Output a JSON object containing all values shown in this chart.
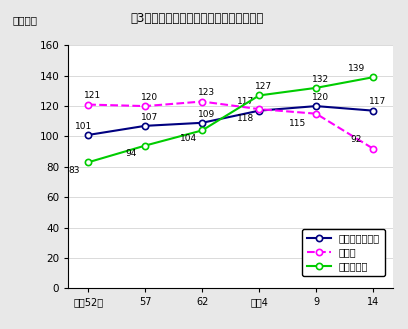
{
  "title": "嘶3　主な産業別有業者数の推移（香川）",
  "ylabel": "（千人）",
  "x_labels": [
    "昭和52年",
    "57",
    "62",
    "平成4",
    "9",
    "14"
  ],
  "x_positions": [
    0,
    1,
    2,
    3,
    4,
    5
  ],
  "series": [
    {
      "name": "卖小売業飲食店",
      "values": [
        101,
        107,
        109,
        117,
        120,
        117
      ],
      "color": "#000080",
      "linestyle": "solid",
      "marker": "o",
      "marker_facecolor": "white",
      "linewidth": 1.5
    },
    {
      "name": "製造業",
      "values": [
        121,
        120,
        123,
        118,
        115,
        92
      ],
      "color": "#FF00FF",
      "linestyle": "dashed",
      "marker": "o",
      "marker_facecolor": "white",
      "linewidth": 1.5
    },
    {
      "name": "サービス業",
      "values": [
        83,
        94,
        104,
        127,
        132,
        139
      ],
      "color": "#00CC00",
      "linestyle": "solid",
      "marker": "o",
      "marker_facecolor": "white",
      "linewidth": 1.5
    }
  ],
  "ylim": [
    0,
    160
  ],
  "yticks": [
    0,
    20,
    40,
    60,
    80,
    100,
    120,
    140,
    160
  ],
  "background_color": "#e8e8e8",
  "plot_bg_color": "#ffffff",
  "label_offsets": [
    [
      [
        -3,
        3
      ],
      [
        3,
        3
      ],
      [
        -10,
        -9
      ]
    ],
    [
      [
        3,
        3
      ],
      [
        3,
        3
      ],
      [
        -10,
        -9
      ]
    ],
    [
      [
        3,
        3
      ],
      [
        3,
        3
      ],
      [
        -10,
        -9
      ]
    ],
    [
      [
        -10,
        3
      ],
      [
        -10,
        -10
      ],
      [
        3,
        3
      ]
    ],
    [
      [
        3,
        3
      ],
      [
        -13,
        -10
      ],
      [
        3,
        3
      ]
    ],
    [
      [
        3,
        3
      ],
      [
        -12,
        3
      ],
      [
        -12,
        3
      ]
    ]
  ]
}
